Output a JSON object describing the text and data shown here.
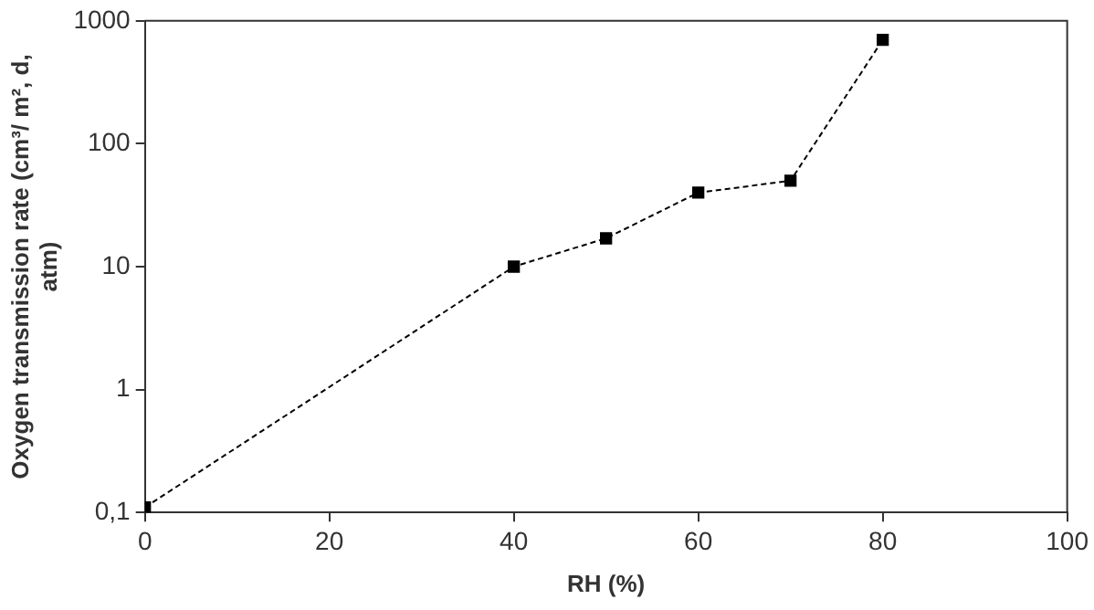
{
  "chart_data": {
    "type": "line",
    "xlabel": "RH (%)",
    "ylabel": "Oxygen transmission rate (cm³/ m², d, atm)",
    "x": [
      0,
      40,
      50,
      60,
      70,
      80
    ],
    "series": [
      {
        "color": "#000000",
        "values": [
          0.11,
          10,
          17,
          40,
          50,
          700
        ]
      }
    ],
    "log": "y",
    "xlim": [
      0,
      100
    ],
    "xticks": [
      0,
      20,
      40,
      60,
      80,
      100
    ],
    "ylim": [
      0.1,
      1000
    ],
    "yticks": [
      {
        "value": 0.1,
        "label": "0,1"
      },
      1,
      10,
      100,
      1000
    ],
    "grid": false,
    "legend": false,
    "marker": "square",
    "line_style": "dashed"
  }
}
